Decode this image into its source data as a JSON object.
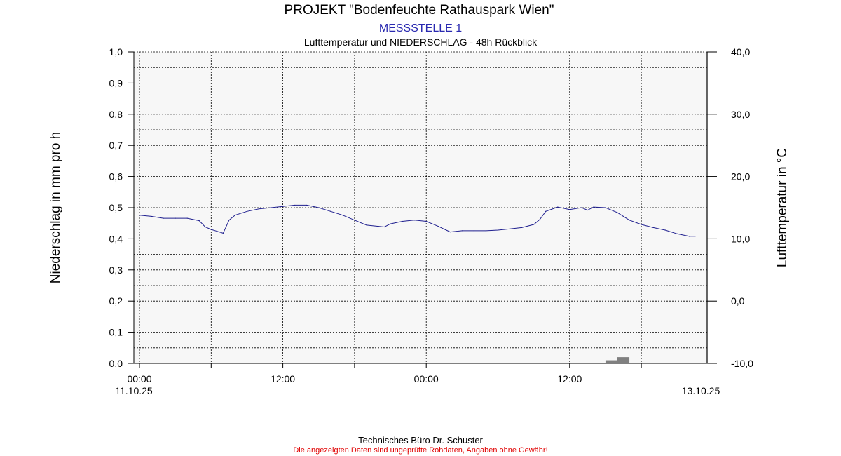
{
  "chart_data": {
    "type": "line",
    "title": "PROJEKT \"Bodenfeuchte Rathauspark Wien\"",
    "subtitle": "MESSSTELLE 1",
    "subsubtitle": "Lufttemperatur und NIEDERSCHLAG - 48h Rückblick",
    "ylabel_left": "Niederschlag in mm pro h",
    "ylabel_right": "Lufttemperatur in °C",
    "ylim_left": [
      0,
      1
    ],
    "ylim_right": [
      -10,
      40
    ],
    "x_range_hours": [
      0,
      48
    ],
    "left_ticks": [
      "0,0",
      "0,1",
      "0,2",
      "0,3",
      "0,4",
      "0,5",
      "0,6",
      "0,7",
      "0,8",
      "0,9",
      "1,0"
    ],
    "right_ticks": [
      "-10,0",
      "0,0",
      "10,0",
      "20,0",
      "30,0",
      "40,0"
    ],
    "x_ticks": [
      {
        "time": "00:00",
        "date": "11.10.25"
      },
      {
        "time": "12:00",
        "date": ""
      },
      {
        "time": "00:00",
        "date": ""
      },
      {
        "time": "12:00",
        "date": ""
      },
      {
        "time": "",
        "date": "13.10.25"
      }
    ],
    "series": [
      {
        "axis": "right",
        "color": "#1f1f8f",
        "x": [
          0,
          1,
          2,
          3,
          4,
          5,
          5.5,
          6,
          6.5,
          7,
          7.5,
          8,
          9,
          10,
          11,
          12,
          13,
          14,
          15,
          16,
          17,
          18,
          19,
          20,
          20.5,
          21,
          22,
          23,
          24,
          25,
          26,
          26.5,
          27,
          28,
          29,
          30,
          31,
          32,
          33,
          33.5,
          34,
          35,
          36,
          37,
          37.5,
          38,
          39,
          40,
          41,
          42,
          43,
          44,
          45,
          46,
          46.5
        ],
        "y": [
          13.8,
          13.6,
          13.3,
          13.3,
          13.3,
          12.9,
          11.9,
          11.5,
          11.2,
          10.9,
          13.0,
          13.8,
          14.4,
          14.8,
          15.0,
          15.2,
          15.4,
          15.4,
          15.0,
          14.4,
          13.8,
          13.0,
          12.2,
          12.0,
          11.9,
          12.4,
          12.8,
          13.0,
          12.8,
          12.0,
          11.1,
          11.2,
          11.3,
          11.3,
          11.3,
          11.4,
          11.6,
          11.8,
          12.3,
          13.1,
          14.4,
          15.1,
          14.7,
          15.0,
          14.6,
          15.1,
          15.0,
          14.2,
          13.0,
          12.3,
          11.8,
          11.4,
          10.8,
          10.4,
          10.4
        ]
      }
    ],
    "bars": [
      {
        "axis": "left",
        "color": "#808080",
        "x_start": 39.0,
        "x_end": 40.0,
        "value": 0.01
      },
      {
        "axis": "left",
        "color": "#808080",
        "x_start": 40.0,
        "x_end": 41.0,
        "value": 0.02
      }
    ],
    "grid": true
  },
  "footer": {
    "company": "Technisches Büro Dr. Schuster",
    "disclaimer": "Die angezeigten Daten sind ungeprüfte Rohdaten, Angaben ohne Gewähr!"
  },
  "colors": {
    "title": "#000000",
    "subtitle": "#2a2ab0",
    "disclaimer": "#e00000",
    "plot_bg": "#f7f7f7"
  }
}
